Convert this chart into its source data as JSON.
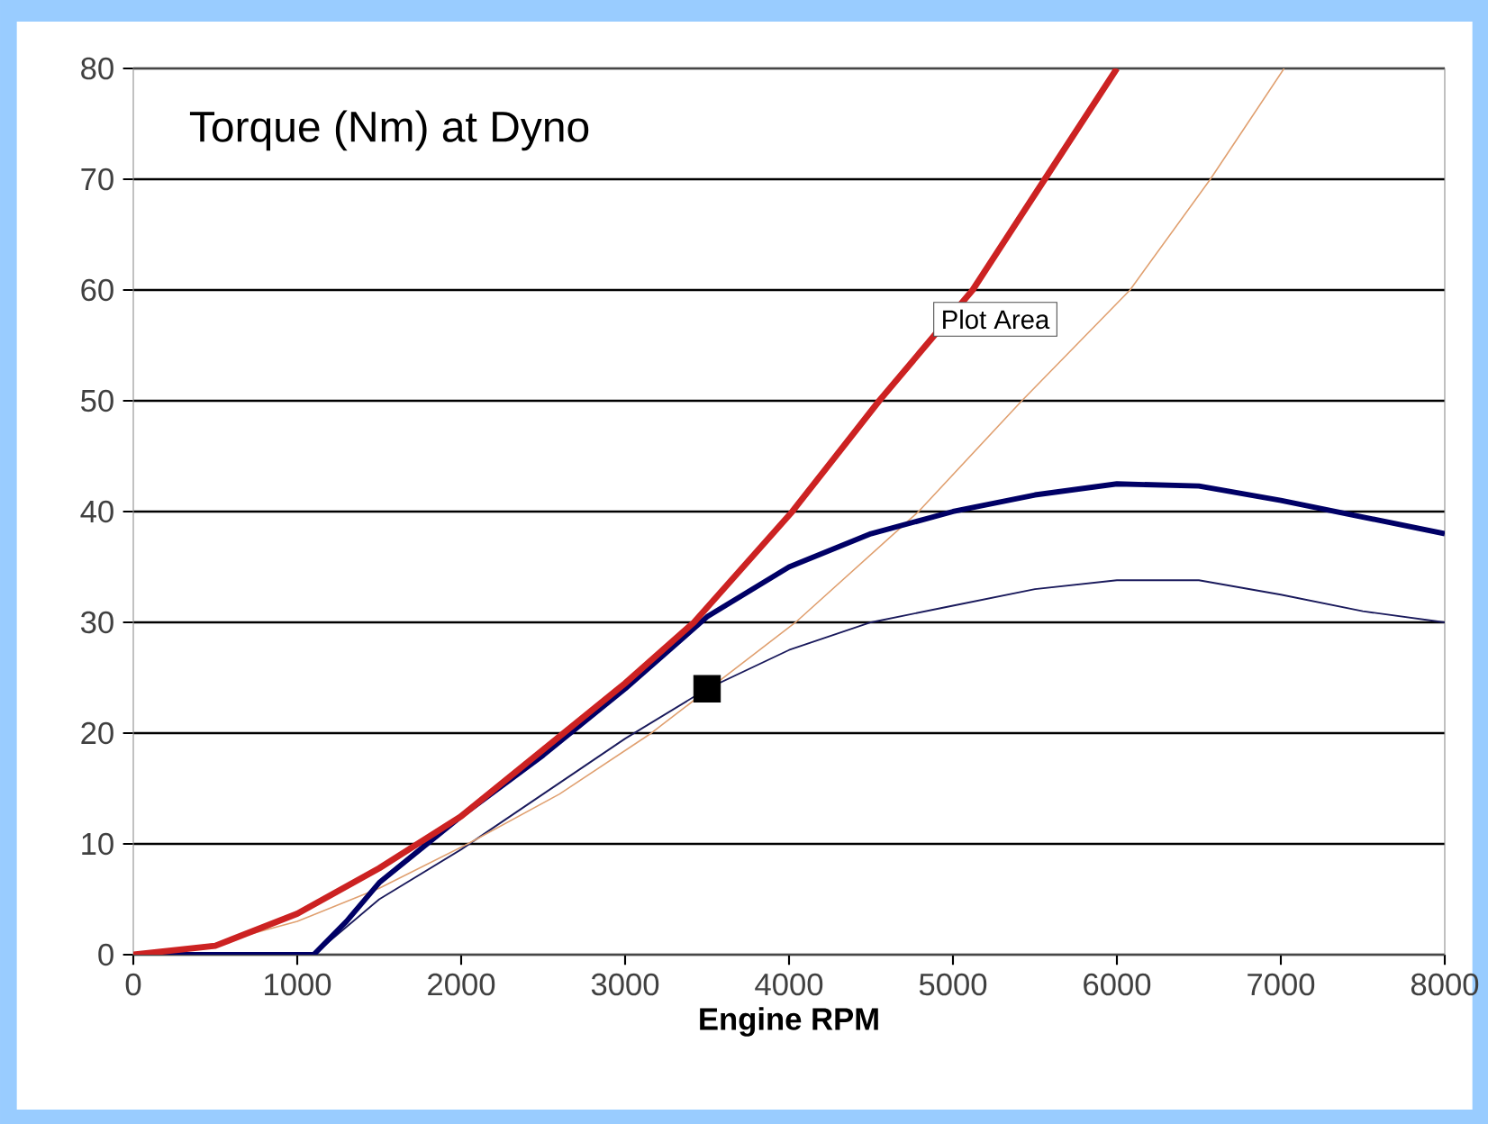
{
  "chart_data": {
    "type": "line",
    "title": "Torque (Nm) at Dyno",
    "xlabel": "Engine RPM",
    "xlim": [
      0,
      8000
    ],
    "ylim": [
      0,
      80
    ],
    "xticks": [
      0,
      1000,
      2000,
      3000,
      4000,
      5000,
      6000,
      7000,
      8000
    ],
    "yticks": [
      0,
      10,
      20,
      30,
      40,
      50,
      60,
      70,
      80
    ],
    "grid": "y",
    "marker": "none",
    "line_style": "solid",
    "annotations": [
      "Plot Area"
    ],
    "series": [
      {
        "color": "#1a1a5c",
        "x": [
          0,
          600,
          1100,
          1500,
          2000,
          2500,
          3000,
          3500,
          4000,
          4500,
          5000,
          5500,
          6000,
          6500,
          7000,
          7500,
          8000
        ],
        "values": [
          0,
          0,
          0,
          5,
          9.5,
          14.5,
          19.5,
          24,
          27.5,
          30,
          31.5,
          33,
          33.8,
          33.8,
          32.5,
          31,
          30
        ]
      },
      {
        "color": "#e0a070",
        "x": [
          0,
          500,
          1000,
          1500,
          2040,
          2600,
          3160,
          3500,
          4040,
          4790,
          5420,
          6080,
          6570,
          7020
        ],
        "values": [
          0,
          1,
          3,
          6,
          10,
          14.5,
          20,
          null,
          30,
          40,
          50,
          60,
          70,
          80
        ]
      },
      {
        "color": "#000066",
        "x": [
          0,
          600,
          1100,
          1300,
          1500,
          2000,
          2500,
          3000,
          3500,
          4000,
          4500,
          5000,
          5500,
          6000,
          6500,
          7000,
          7500,
          8000
        ],
        "values": [
          0,
          0,
          0,
          3,
          6.5,
          12.5,
          18,
          24,
          30.5,
          35,
          38,
          40,
          41.5,
          42.5,
          42.3,
          41,
          39.5,
          38
        ]
      },
      {
        "color": "#cc2222",
        "x": [
          0,
          500,
          1000,
          1500,
          2000,
          2500,
          3000,
          3420,
          4020,
          4550,
          5120,
          5560,
          6000
        ],
        "values": [
          0,
          0.8,
          3.7,
          7.8,
          12.5,
          18.5,
          24.5,
          30,
          40,
          50,
          60,
          70,
          80
        ]
      },
      {
        "type": "scatter",
        "marker": "square",
        "color": "#000000",
        "x": [
          3500
        ],
        "values": [
          24
        ]
      }
    ]
  }
}
